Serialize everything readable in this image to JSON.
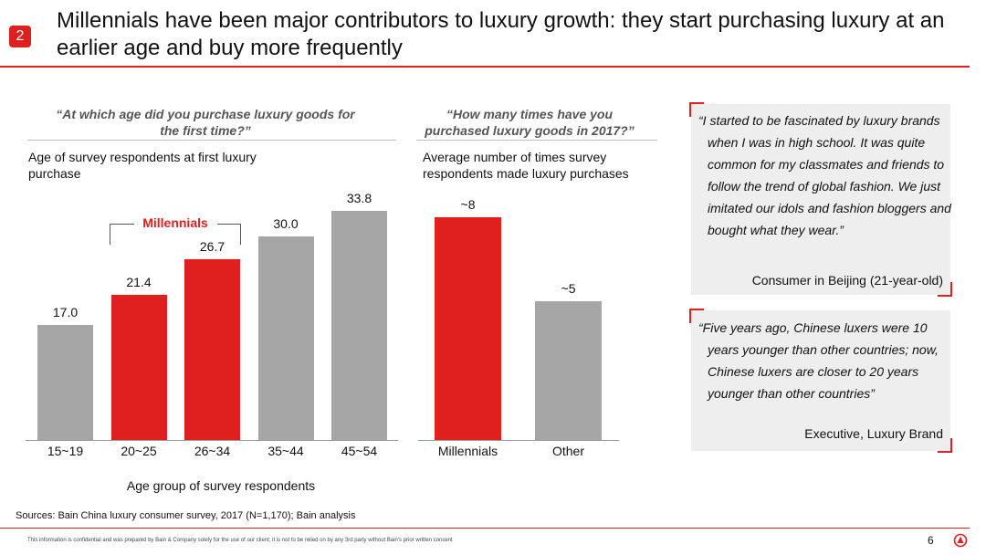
{
  "header": {
    "badge": "2",
    "title": "Millennials have been major contributors to luxury growth: they start purchasing luxury at an earlier age and buy more frequently"
  },
  "colors": {
    "accent": "#e01f1f",
    "gray_bar": "#a7a6a7",
    "quote_bg": "#eeeeee"
  },
  "left_chart": {
    "question": "“At which age did you purchase luxury goods for the first time?”",
    "subtitle": "Age of survey respondents at first luxury purchase",
    "bracket_label": "Millennials",
    "xaxis_title": "Age group of survey respondents"
  },
  "right_chart": {
    "question": "“How many times have you purchased luxury goods in 2017?”",
    "subtitle": "Average number of times survey respondents made luxury purchases"
  },
  "chart_data": [
    {
      "type": "bar",
      "title": "Age of survey respondents at first luxury purchase",
      "xlabel": "Age group of survey respondents",
      "ylabel": "",
      "categories": [
        "15~19",
        "20~25",
        "26~34",
        "35~44",
        "45~54"
      ],
      "values": [
        17.0,
        21.4,
        26.7,
        30.0,
        33.8
      ],
      "value_labels": [
        "17.0",
        "21.4",
        "26.7",
        "30.0",
        "33.8"
      ],
      "highlight": [
        false,
        true,
        true,
        false,
        false
      ],
      "ylim": [
        0,
        40
      ],
      "grid": false
    },
    {
      "type": "bar",
      "title": "Average number of times survey respondents made luxury purchases",
      "xlabel": "",
      "ylabel": "",
      "categories": [
        "Millennials",
        "Other"
      ],
      "values": [
        8,
        5
      ],
      "value_labels": [
        "~8",
        "~5"
      ],
      "highlight": [
        true,
        false
      ],
      "ylim": [
        0,
        10
      ],
      "grid": false
    }
  ],
  "quotes": [
    {
      "text": "“I started to be fascinated by luxury brands when I was in high school. It was quite common for my classmates and friends to follow the trend of global fashion. We just imitated our idols and fashion bloggers and bought what they wear.”",
      "attribution": "Consumer in Beijing (21-year-old)"
    },
    {
      "text": "“Five years ago, Chinese luxers were 10 years younger than other countries; now, Chinese luxers are closer to 20 years younger than other countries”",
      "attribution": "Executive, Luxury Brand"
    }
  ],
  "footer": {
    "sources": "Sources: Bain China luxury consumer survey, 2017 (N=1,170); Bain analysis",
    "confidential": "This information is confidential and was prepared by Bain & Company solely for the use of our client; it is not to be relied on by any 3rd party without Bain's prior written consent",
    "page_number": "6",
    "logo_icon": "bain-logo-icon"
  }
}
